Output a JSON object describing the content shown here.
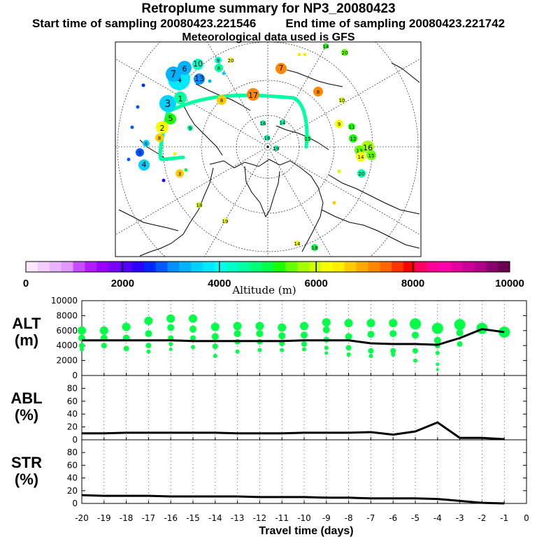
{
  "header": {
    "title": "Retroplume summary for NP3_20080423",
    "start_label": "Start time of sampling 20080423.221546",
    "end_label": "End time of sampling 20080423.221742",
    "met_label": "Meteorological data used is GFS"
  },
  "colorbar": {
    "label": "Altitude (m)",
    "ticks": [
      "0",
      "2000",
      "4000",
      "6000",
      "8000",
      "10000"
    ],
    "range": [
      0,
      10000
    ],
    "colors": [
      "#ffe6ff",
      "#f5ccff",
      "#eab3ff",
      "#df99ff",
      "#c64dff",
      "#b31aff",
      "#9900ff",
      "#7a00ff",
      "#5200ff",
      "#2e00ff",
      "#0026ff",
      "#0059ff",
      "#0090ff",
      "#00b3ff",
      "#00d2ff",
      "#00eaff",
      "#00ffee",
      "#00ffc8",
      "#00ffa0",
      "#00ff78",
      "#00ff46",
      "#1aff00",
      "#66ff00",
      "#a6ff00",
      "#d2ff00",
      "#f5ff00",
      "#ffee00",
      "#ffcc00",
      "#ffaa00",
      "#ff8800",
      "#ff6600",
      "#ff3300",
      "#ff0000",
      "#ff0066",
      "#ff0099",
      "#ff00aa",
      "#e6009e",
      "#cc0099",
      "#b30088",
      "#8c006e",
      "#6b0050"
    ]
  },
  "map": {
    "day_labels": [
      "1",
      "2",
      "3",
      "4",
      "5",
      "6",
      "7",
      "8",
      "9",
      "10",
      "11",
      "12",
      "13",
      "14",
      "15",
      "16",
      "17",
      "18",
      "19",
      "20"
    ]
  },
  "chart_data": [
    {
      "type": "line",
      "panel": "ALT",
      "ylabel": "ALT (m)",
      "ylabel_line1": "ALT",
      "ylabel_line2": "(m)",
      "ylim": [
        0,
        10000
      ],
      "yticks": [
        "0",
        "2000",
        "4000",
        "6000",
        "8000",
        "10000"
      ],
      "x": [
        -20,
        -19,
        -18,
        -17,
        -16,
        -15,
        -14,
        -13,
        -12,
        -11,
        -10,
        -9,
        -8,
        -7,
        -6,
        -5,
        -4,
        -3,
        -2,
        -1
      ],
      "values": [
        4700,
        4700,
        4700,
        4700,
        4700,
        4600,
        4600,
        4600,
        4600,
        4600,
        4700,
        4700,
        4700,
        4300,
        4200,
        4200,
        4100,
        5000,
        6200,
        5800
      ],
      "scatter": [
        {
          "x": -20,
          "ys": [
            6000,
            5000,
            4000,
            3500
          ]
        },
        {
          "x": -19,
          "ys": [
            6000,
            5000,
            4000
          ]
        },
        {
          "x": -18,
          "ys": [
            6500,
            5000,
            3600
          ]
        },
        {
          "x": -17,
          "ys": [
            7300,
            5600,
            4000,
            3200
          ]
        },
        {
          "x": -16,
          "ys": [
            7600,
            6400,
            5000,
            4200,
            3500
          ]
        },
        {
          "x": -15,
          "ys": [
            7600,
            6200,
            5000,
            3800
          ]
        },
        {
          "x": -14,
          "ys": [
            6500,
            5200,
            3900,
            2600
          ]
        },
        {
          "x": -13,
          "ys": [
            6600,
            5600,
            4500,
            3200
          ]
        },
        {
          "x": -12,
          "ys": [
            6600,
            5600,
            4500,
            3400
          ]
        },
        {
          "x": -11,
          "ys": [
            6400,
            5300,
            4300,
            3400
          ]
        },
        {
          "x": -10,
          "ys": [
            6600,
            5400,
            4200,
            3500
          ]
        },
        {
          "x": -9,
          "ys": [
            7100,
            6100,
            4800,
            3700,
            3000
          ]
        },
        {
          "x": -8,
          "ys": [
            7000,
            5200,
            3700,
            2800
          ]
        },
        {
          "x": -7,
          "ys": [
            7000,
            5500,
            3300,
            2600
          ]
        },
        {
          "x": -6,
          "ys": [
            7000,
            5600,
            3300,
            2800
          ]
        },
        {
          "x": -5,
          "ys": [
            6900,
            5400,
            3300,
            2000
          ]
        },
        {
          "x": -4,
          "ys": [
            6300,
            4700,
            4000,
            3000,
            1500,
            800
          ]
        },
        {
          "x": -3,
          "ys": [
            6800,
            5700,
            4200
          ]
        },
        {
          "x": -2,
          "ys": [
            6300,
            6100
          ]
        },
        {
          "x": -1,
          "ys": [
            5800
          ]
        }
      ]
    },
    {
      "type": "line",
      "panel": "ABL",
      "ylabel": "ABL (%)",
      "ylabel_line1": "ABL",
      "ylabel_line2": "(%)",
      "ylim": [
        0,
        100
      ],
      "yticks": [
        "0",
        "20",
        "40",
        "60",
        "80"
      ],
      "x": [
        -20,
        -19,
        -18,
        -17,
        -16,
        -15,
        -14,
        -13,
        -12,
        -11,
        -10,
        -9,
        -8,
        -7,
        -6,
        -5,
        -4,
        -3,
        -2,
        -1
      ],
      "values": [
        10,
        10,
        11,
        11,
        11,
        11,
        11,
        10,
        10,
        10,
        11,
        11,
        11,
        12,
        8,
        13,
        27,
        3,
        3,
        1
      ]
    },
    {
      "type": "line",
      "panel": "STR",
      "ylabel": "STR (%)",
      "ylabel_line1": "STR",
      "ylabel_line2": "(%)",
      "ylim": [
        0,
        100
      ],
      "yticks": [
        "0",
        "20",
        "40",
        "60",
        "80"
      ],
      "x": [
        -20,
        -19,
        -18,
        -17,
        -16,
        -15,
        -14,
        -13,
        -12,
        -11,
        -10,
        -9,
        -8,
        -7,
        -6,
        -5,
        -4,
        -3,
        -2,
        -1
      ],
      "values": [
        13,
        12,
        12,
        12,
        11,
        11,
        11,
        11,
        10,
        10,
        10,
        9,
        9,
        8,
        8,
        8,
        7,
        4,
        1,
        0
      ],
      "xlabel": "Travel time (days)",
      "xticks": [
        "-20",
        "-19",
        "-18",
        "-17",
        "-16",
        "-15",
        "-14",
        "-13",
        "-12",
        "-11",
        "-10",
        "-9",
        "-8",
        "-7",
        "-6",
        "-5",
        "-4",
        "-3",
        "-2",
        "-1",
        "0"
      ]
    }
  ]
}
